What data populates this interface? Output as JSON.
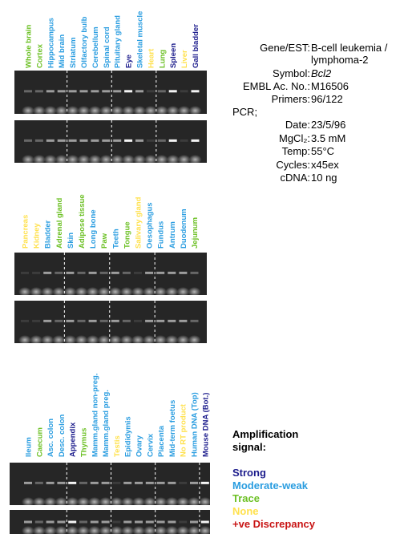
{
  "panels": [
    {
      "lanes": [
        {
          "label": "Whole brain",
          "color": "#6cc024"
        },
        {
          "label": "Cortex",
          "color": "#6cc024"
        },
        {
          "label": "Hippocampus",
          "color": "#2a9de0"
        },
        {
          "label": "Mid brain",
          "color": "#2a9de0"
        },
        {
          "label": "Striatum",
          "color": "#2a9de0"
        },
        {
          "label": "Olfactory bulb",
          "color": "#2a9de0"
        },
        {
          "label": "Cerebellum",
          "color": "#2a9de0"
        },
        {
          "label": "Spinal cord",
          "color": "#2a9de0"
        },
        {
          "label": "Pituitary gland",
          "color": "#2a9de0"
        },
        {
          "label": "Eye",
          "color": "#1c1c8c"
        },
        {
          "label": "Skeletal muscle",
          "color": "#2a9de0"
        },
        {
          "label": "Heart",
          "color": "#ffe14d"
        },
        {
          "label": "Lung",
          "color": "#6cc024"
        },
        {
          "label": "Spleen",
          "color": "#1c1c8c"
        },
        {
          "label": "Liver",
          "color": "#ffe14d"
        },
        {
          "label": "Gall bladder",
          "color": "#1c1c8c"
        }
      ]
    },
    {
      "lanes": [
        {
          "label": "Pancreas",
          "color": "#ffe14d"
        },
        {
          "label": "Kidney",
          "color": "#ffe14d"
        },
        {
          "label": "Bladder",
          "color": "#2a9de0"
        },
        {
          "label": "Adrenal gland",
          "color": "#6cc024"
        },
        {
          "label": "Skin",
          "color": "#2a9de0"
        },
        {
          "label": "Adipose tissue",
          "color": "#6cc024"
        },
        {
          "label": "Long bone",
          "color": "#2a9de0"
        },
        {
          "label": "Paw",
          "color": "#6cc024"
        },
        {
          "label": "Teeth",
          "color": "#2a9de0"
        },
        {
          "label": "Tongue",
          "color": "#6cc024"
        },
        {
          "label": "Salivary gland",
          "color": "#ffe14d"
        },
        {
          "label": "Oesophagus",
          "color": "#2a9de0"
        },
        {
          "label": "Fundus",
          "color": "#2a9de0"
        },
        {
          "label": "Antrum",
          "color": "#2a9de0"
        },
        {
          "label": "Duodenum",
          "color": "#2a9de0"
        },
        {
          "label": "Jejunum",
          "color": "#6cc024"
        }
      ]
    },
    {
      "lanes": [
        {
          "label": "Ileum",
          "color": "#2a9de0"
        },
        {
          "label": "Caecum",
          "color": "#6cc024"
        },
        {
          "label": "Asc. colon",
          "color": "#2a9de0"
        },
        {
          "label": "Desc. colon",
          "color": "#2a9de0"
        },
        {
          "label": "Appendix",
          "color": "#1c1c8c"
        },
        {
          "label": "Thymus",
          "color": "#6cc024"
        },
        {
          "label": "Mamm.gland non-preg.",
          "color": "#2a9de0"
        },
        {
          "label": "Mamm.gland preg.",
          "color": "#2a9de0"
        },
        {
          "label": "Testis",
          "color": "#ffe14d"
        },
        {
          "label": "Epididymis",
          "color": "#2a9de0"
        },
        {
          "label": "Ovary",
          "color": "#2a9de0"
        },
        {
          "label": "Cervix",
          "color": "#2a9de0"
        },
        {
          "label": "Placenta",
          "color": "#2a9de0"
        },
        {
          "label": "Mid-term foetus",
          "color": "#2a9de0"
        },
        {
          "label": "No RT product",
          "color": "#ffe14d"
        },
        {
          "label": "Human DNA (Top)",
          "color": "#2a9de0"
        },
        {
          "label": "Mouse DNA (Bot.)",
          "color": "#1c1c8c"
        }
      ]
    }
  ],
  "info": {
    "rows": [
      {
        "label": "Gene/EST:",
        "value": "B-cell leukemia / lymphoma-2"
      },
      {
        "label": "Symbol:",
        "value": "Bcl2"
      },
      {
        "label": "EMBL Ac. No.:",
        "value": "M16506"
      },
      {
        "label": "Primers:",
        "value": "96/122"
      }
    ],
    "pcr_heading": "PCR;",
    "pcr_rows": [
      {
        "label": "Date:",
        "value": "23/5/96"
      },
      {
        "label": "MgCl₂:",
        "value": "3.5 mM"
      },
      {
        "label": "Temp:",
        "value": "55°C"
      },
      {
        "label": "Cycles:",
        "value": "x45ex"
      },
      {
        "label": "cDNA:",
        "value": "10 ng"
      }
    ]
  },
  "legend": {
    "title": "Amplification signal:",
    "items": [
      {
        "label": "Strong",
        "color": "#1c1c8c"
      },
      {
        "label": "Moderate-weak",
        "color": "#2a9de0"
      },
      {
        "label": "Trace",
        "color": "#6cc024"
      },
      {
        "label": "None",
        "color": "#ffe14d"
      },
      {
        "label": "+ve Discrepancy",
        "color": "#c81414"
      }
    ]
  }
}
